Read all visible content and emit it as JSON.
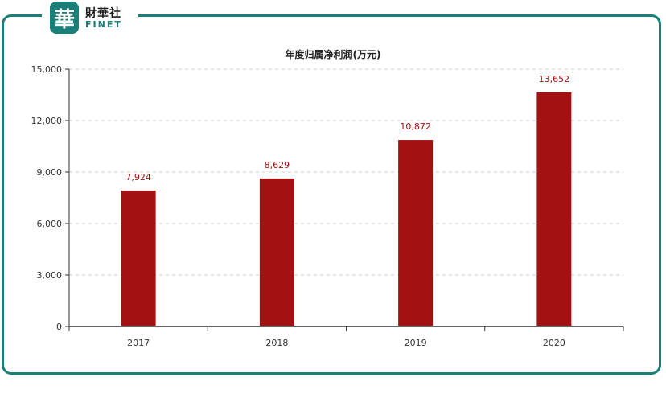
{
  "logo": {
    "mark": "華",
    "name_cn": "財華社",
    "name_en": "FINET"
  },
  "colors": {
    "frame": "#1a7f78",
    "bar": "#a31212",
    "label": "#a31212"
  },
  "chart_data": {
    "type": "bar",
    "title": "年度归属净利润(万元)",
    "categories": [
      "2017",
      "2018",
      "2019",
      "2020"
    ],
    "values": [
      7924,
      8629,
      10872,
      13652
    ],
    "value_labels": [
      "7,924",
      "8,629",
      "10,872",
      "13,652"
    ],
    "ylim": [
      0,
      15000
    ],
    "yticks": [
      0,
      3000,
      6000,
      9000,
      12000,
      15000
    ],
    "ytick_labels": [
      "0",
      "3,000",
      "6,000",
      "9,000",
      "12,000",
      "15,000"
    ],
    "grid": true,
    "xlabel": "",
    "ylabel": ""
  }
}
